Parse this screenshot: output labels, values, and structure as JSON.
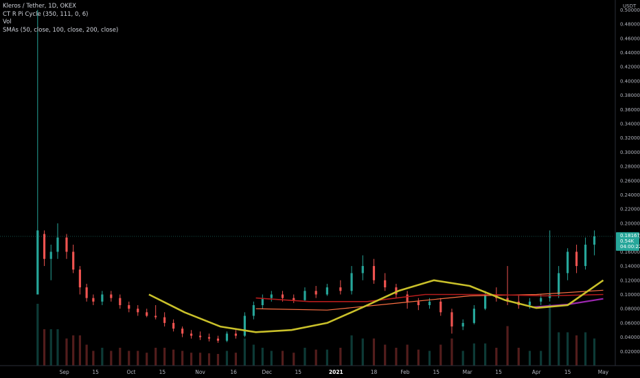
{
  "legend": {
    "symbol": "Kleros / Tether, 1D, OKEX",
    "indicator1": "CT R Pi Cycle (350, 111, 0, 6)",
    "indicator2": "Vol",
    "indicator3": "SMAs (50, close, 100, close, 200, close)"
  },
  "axis": {
    "currency": "USDT",
    "y_ticks": [
      "0.50000",
      "0.48000",
      "0.46000",
      "0.44000",
      "0.42000",
      "0.40000",
      "0.38000",
      "0.36000",
      "0.34000",
      "0.32000",
      "0.30000",
      "0.28000",
      "0.26000",
      "0.24000",
      "0.22000",
      "0.20000",
      "0.18000",
      "0.16000",
      "0.14000",
      "0.12000",
      "0.10000",
      "0.08000",
      "0.06000",
      "0.04000",
      "0.02000"
    ],
    "x_ticks": [
      "Sep",
      "15",
      "Oct",
      "15",
      "Nov",
      "16",
      "Dec",
      "15",
      "2021",
      "18",
      "Feb",
      "15",
      "Mar",
      "15",
      "Apr",
      "15",
      "May"
    ],
    "bold_ticks": [
      "2021"
    ]
  },
  "price_label": {
    "price": "0.18167",
    "volume": "0.54K",
    "countdown": "04:00:22"
  },
  "colors": {
    "up": "#26a69a",
    "down": "#ef5350",
    "sma50": "#c9c02a",
    "sma100": "#b71c1c",
    "sma200": "#ff7043",
    "pi": "#9c27b0",
    "label_bg": "#26a69a"
  },
  "chart_data": {
    "type": "candlestick",
    "title": "Kleros / Tether, 1D, OKEX",
    "ylim": [
      0,
      0.51
    ],
    "x_range": [
      "2020-08-19",
      "2021-05-02"
    ],
    "last_price": 0.18167,
    "candles": [
      [
        "2020-08-20",
        0.1,
        0.5,
        0.1,
        0.19
      ],
      [
        "2020-08-23",
        0.185,
        0.19,
        0.14,
        0.15
      ],
      [
        "2020-08-26",
        0.15,
        0.17,
        0.12,
        0.16
      ],
      [
        "2020-08-29",
        0.16,
        0.2,
        0.15,
        0.18
      ],
      [
        "2020-09-02",
        0.18,
        0.185,
        0.15,
        0.16
      ],
      [
        "2020-09-05",
        0.16,
        0.17,
        0.13,
        0.135
      ],
      [
        "2020-09-08",
        0.135,
        0.14,
        0.1,
        0.11
      ],
      [
        "2020-09-11",
        0.11,
        0.115,
        0.09,
        0.095
      ],
      [
        "2020-09-14",
        0.095,
        0.1,
        0.085,
        0.09
      ],
      [
        "2020-09-18",
        0.09,
        0.105,
        0.085,
        0.1
      ],
      [
        "2020-09-22",
        0.1,
        0.105,
        0.09,
        0.095
      ],
      [
        "2020-09-26",
        0.095,
        0.1,
        0.08,
        0.085
      ],
      [
        "2020-09-30",
        0.085,
        0.09,
        0.075,
        0.08
      ],
      [
        "2020-10-04",
        0.08,
        0.085,
        0.07,
        0.075
      ],
      [
        "2020-10-08",
        0.075,
        0.08,
        0.068,
        0.07
      ],
      [
        "2020-10-12",
        0.07,
        0.085,
        0.065,
        0.068
      ],
      [
        "2020-10-16",
        0.068,
        0.075,
        0.055,
        0.06
      ],
      [
        "2020-10-20",
        0.06,
        0.065,
        0.048,
        0.052
      ],
      [
        "2020-10-24",
        0.052,
        0.055,
        0.04,
        0.045
      ],
      [
        "2020-10-28",
        0.045,
        0.05,
        0.038,
        0.042
      ],
      [
        "2020-11-01",
        0.042,
        0.048,
        0.036,
        0.04
      ],
      [
        "2020-11-05",
        0.04,
        0.045,
        0.034,
        0.038
      ],
      [
        "2020-11-09",
        0.038,
        0.042,
        0.032,
        0.035
      ],
      [
        "2020-11-13",
        0.035,
        0.048,
        0.033,
        0.045
      ],
      [
        "2020-11-17",
        0.045,
        0.05,
        0.038,
        0.042
      ],
      [
        "2020-11-21",
        0.042,
        0.075,
        0.04,
        0.07
      ],
      [
        "2020-11-25",
        0.07,
        0.09,
        0.065,
        0.085
      ],
      [
        "2020-11-29",
        0.085,
        0.1,
        0.08,
        0.095
      ],
      [
        "2020-12-03",
        0.095,
        0.105,
        0.09,
        0.1
      ],
      [
        "2020-12-08",
        0.1,
        0.105,
        0.09,
        0.095
      ],
      [
        "2020-12-13",
        0.095,
        0.1,
        0.088,
        0.092
      ],
      [
        "2020-12-18",
        0.092,
        0.11,
        0.09,
        0.105
      ],
      [
        "2020-12-23",
        0.105,
        0.112,
        0.095,
        0.1
      ],
      [
        "2020-12-28",
        0.1,
        0.115,
        0.098,
        0.11
      ],
      [
        "2021-01-03",
        0.11,
        0.12,
        0.1,
        0.105
      ],
      [
        "2021-01-08",
        0.105,
        0.14,
        0.1,
        0.13
      ],
      [
        "2021-01-13",
        0.13,
        0.155,
        0.12,
        0.14
      ],
      [
        "2021-01-18",
        0.14,
        0.15,
        0.115,
        0.12
      ],
      [
        "2021-01-23",
        0.12,
        0.13,
        0.105,
        0.11
      ],
      [
        "2021-01-28",
        0.11,
        0.115,
        0.095,
        0.1
      ],
      [
        "2021-02-02",
        0.1,
        0.105,
        0.08,
        0.09
      ],
      [
        "2021-02-07",
        0.09,
        0.095,
        0.078,
        0.085
      ],
      [
        "2021-02-12",
        0.085,
        0.095,
        0.08,
        0.09
      ],
      [
        "2021-02-17",
        0.09,
        0.095,
        0.07,
        0.075
      ],
      [
        "2021-02-22",
        0.075,
        0.08,
        0.045,
        0.055
      ],
      [
        "2021-02-27",
        0.055,
        0.065,
        0.05,
        0.06
      ],
      [
        "2021-03-04",
        0.06,
        0.085,
        0.058,
        0.08
      ],
      [
        "2021-03-09",
        0.08,
        0.105,
        0.078,
        0.1
      ],
      [
        "2021-03-14",
        0.1,
        0.11,
        0.09,
        0.095
      ],
      [
        "2021-03-19",
        0.095,
        0.14,
        0.085,
        0.09
      ],
      [
        "2021-03-24",
        0.09,
        0.1,
        0.08,
        0.085
      ],
      [
        "2021-03-29",
        0.085,
        0.095,
        0.08,
        0.09
      ],
      [
        "2021-04-03",
        0.09,
        0.1,
        0.085,
        0.095
      ],
      [
        "2021-04-07",
        0.095,
        0.19,
        0.09,
        0.1
      ],
      [
        "2021-04-11",
        0.1,
        0.14,
        0.095,
        0.13
      ],
      [
        "2021-04-15",
        0.13,
        0.165,
        0.12,
        0.16
      ],
      [
        "2021-04-19",
        0.16,
        0.17,
        0.13,
        0.14
      ],
      [
        "2021-04-23",
        0.14,
        0.18,
        0.135,
        0.17
      ],
      [
        "2021-04-27",
        0.17,
        0.19,
        0.155,
        0.18167
      ]
    ],
    "sma50": [
      [
        "2020-10-09",
        0.1
      ],
      [
        "2020-10-25",
        0.075
      ],
      [
        "2020-11-10",
        0.055
      ],
      [
        "2020-11-26",
        0.047
      ],
      [
        "2020-12-12",
        0.05
      ],
      [
        "2020-12-28",
        0.06
      ],
      [
        "2021-01-13",
        0.082
      ],
      [
        "2021-01-29",
        0.105
      ],
      [
        "2021-02-14",
        0.12
      ],
      [
        "2021-03-02",
        0.112
      ],
      [
        "2021-03-18",
        0.092
      ],
      [
        "2021-04-01",
        0.081
      ],
      [
        "2021-04-15",
        0.085
      ],
      [
        "2021-05-01",
        0.12
      ]
    ],
    "sma100": [
      [
        "2020-11-26",
        0.095
      ],
      [
        "2020-12-20",
        0.09
      ],
      [
        "2021-01-15",
        0.09
      ],
      [
        "2021-02-10",
        0.1
      ],
      [
        "2021-03-10",
        0.1
      ],
      [
        "2021-04-05",
        0.098
      ],
      [
        "2021-05-01",
        0.1
      ]
    ],
    "sma200": [
      [
        "2020-11-26",
        0.08
      ],
      [
        "2020-12-28",
        0.078
      ],
      [
        "2021-01-29",
        0.088
      ],
      [
        "2021-03-02",
        0.098
      ],
      [
        "2021-04-01",
        0.1
      ],
      [
        "2021-05-01",
        0.106
      ]
    ],
    "pi_cycle": [
      [
        "2021-03-30",
        0.082
      ],
      [
        "2021-04-15",
        0.086
      ],
      [
        "2021-05-01",
        0.094
      ]
    ]
  }
}
